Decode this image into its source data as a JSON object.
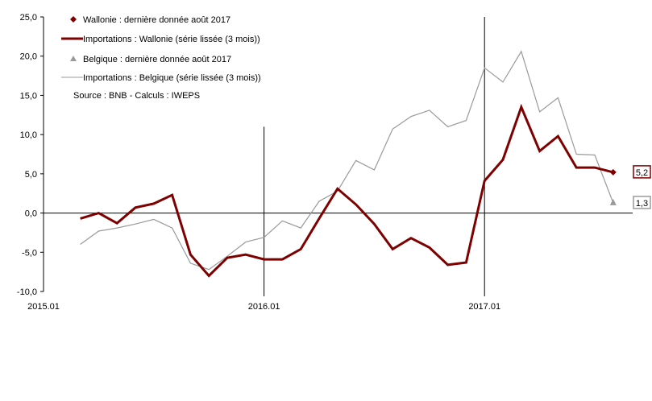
{
  "chart_data": {
    "type": "line",
    "ylim": [
      -10,
      25
    ],
    "y_ticks": [
      "25,0",
      "20,0",
      "15,0",
      "10,0",
      "5,0",
      "0,0",
      "-5,0",
      "-10,0"
    ],
    "y_tick_values": [
      25,
      20,
      15,
      10,
      5,
      0,
      -5,
      -10
    ],
    "x_ticks": [
      {
        "label": "2015.01",
        "index": 0
      },
      {
        "label": "2016.01",
        "index": 12
      },
      {
        "label": "2017.01",
        "index": 24
      }
    ],
    "vertical_lines_at_index": [
      12,
      24
    ],
    "legend": {
      "wallonie_marker": "Wallonie : dernière donnée août 2017",
      "wallonie_line": "Importations : Wallonie (série lissée (3 mois))",
      "belgique_marker": "Belgique : dernière donnée août 2017",
      "belgique_line": "Importations : Belgique (série lissée (3 mois))",
      "source": "Source : BNB - Calculs : IWEPS"
    },
    "series": [
      {
        "name": "Importations : Wallonie (série lissée (3 mois))",
        "color": "#7f0000",
        "x_start_index": 2,
        "values": [
          -0.7,
          0.0,
          -1.3,
          0.7,
          1.2,
          2.3,
          -5.3,
          -8.0,
          -5.7,
          -5.3,
          -5.9,
          -5.9,
          -4.6,
          -0.7,
          3.1,
          1.1,
          -1.4,
          -4.6,
          -3.2,
          -4.4,
          -6.6,
          -6.3,
          4.1,
          6.8,
          13.5,
          7.9,
          9.8,
          5.8,
          5.8,
          5.2
        ]
      },
      {
        "name": "Importations : Belgique (série lissée (3 mois))",
        "color": "#9a9a9a",
        "x_start_index": 2,
        "values": [
          -4.0,
          -2.3,
          -1.9,
          -1.4,
          -0.8,
          -1.9,
          -6.4,
          -7.2,
          -5.5,
          -3.7,
          -3.1,
          -1.0,
          -1.9,
          1.5,
          2.8,
          6.7,
          5.5,
          10.7,
          12.3,
          13.1,
          11.0,
          11.8,
          18.5,
          16.7,
          20.6,
          12.9,
          14.7,
          7.5,
          7.4,
          1.3
        ]
      }
    ],
    "end_labels": [
      {
        "series": "Wallonie",
        "value": 5.2,
        "text": "5,2",
        "color": "#7f0000"
      },
      {
        "series": "Belgique",
        "value": 1.3,
        "text": "1,3",
        "color": "#9a9a9a"
      }
    ]
  }
}
